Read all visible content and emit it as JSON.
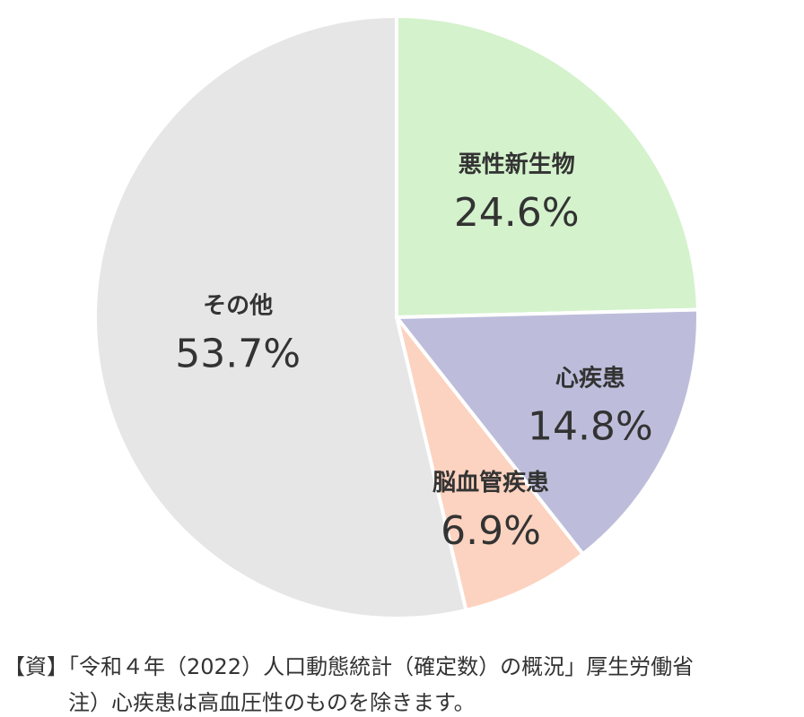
{
  "chart_data": {
    "type": "pie",
    "categories": [
      "悪性新生物",
      "心疾患",
      "脳血管疾患",
      "その他"
    ],
    "values": [
      24.6,
      14.8,
      6.9,
      53.7
    ],
    "value_labels": [
      "24.6%",
      "14.8%",
      "6.9%",
      "53.7%"
    ],
    "colors": [
      "#d4f2cc",
      "#bdbddb",
      "#fcd3c0",
      "#e6e6e6"
    ]
  },
  "source": "【資】「令和４年（2022）人口動態統計（確定数）の概況」厚生労働省",
  "note": "注）心疾患は高血圧性のものを除きます。"
}
